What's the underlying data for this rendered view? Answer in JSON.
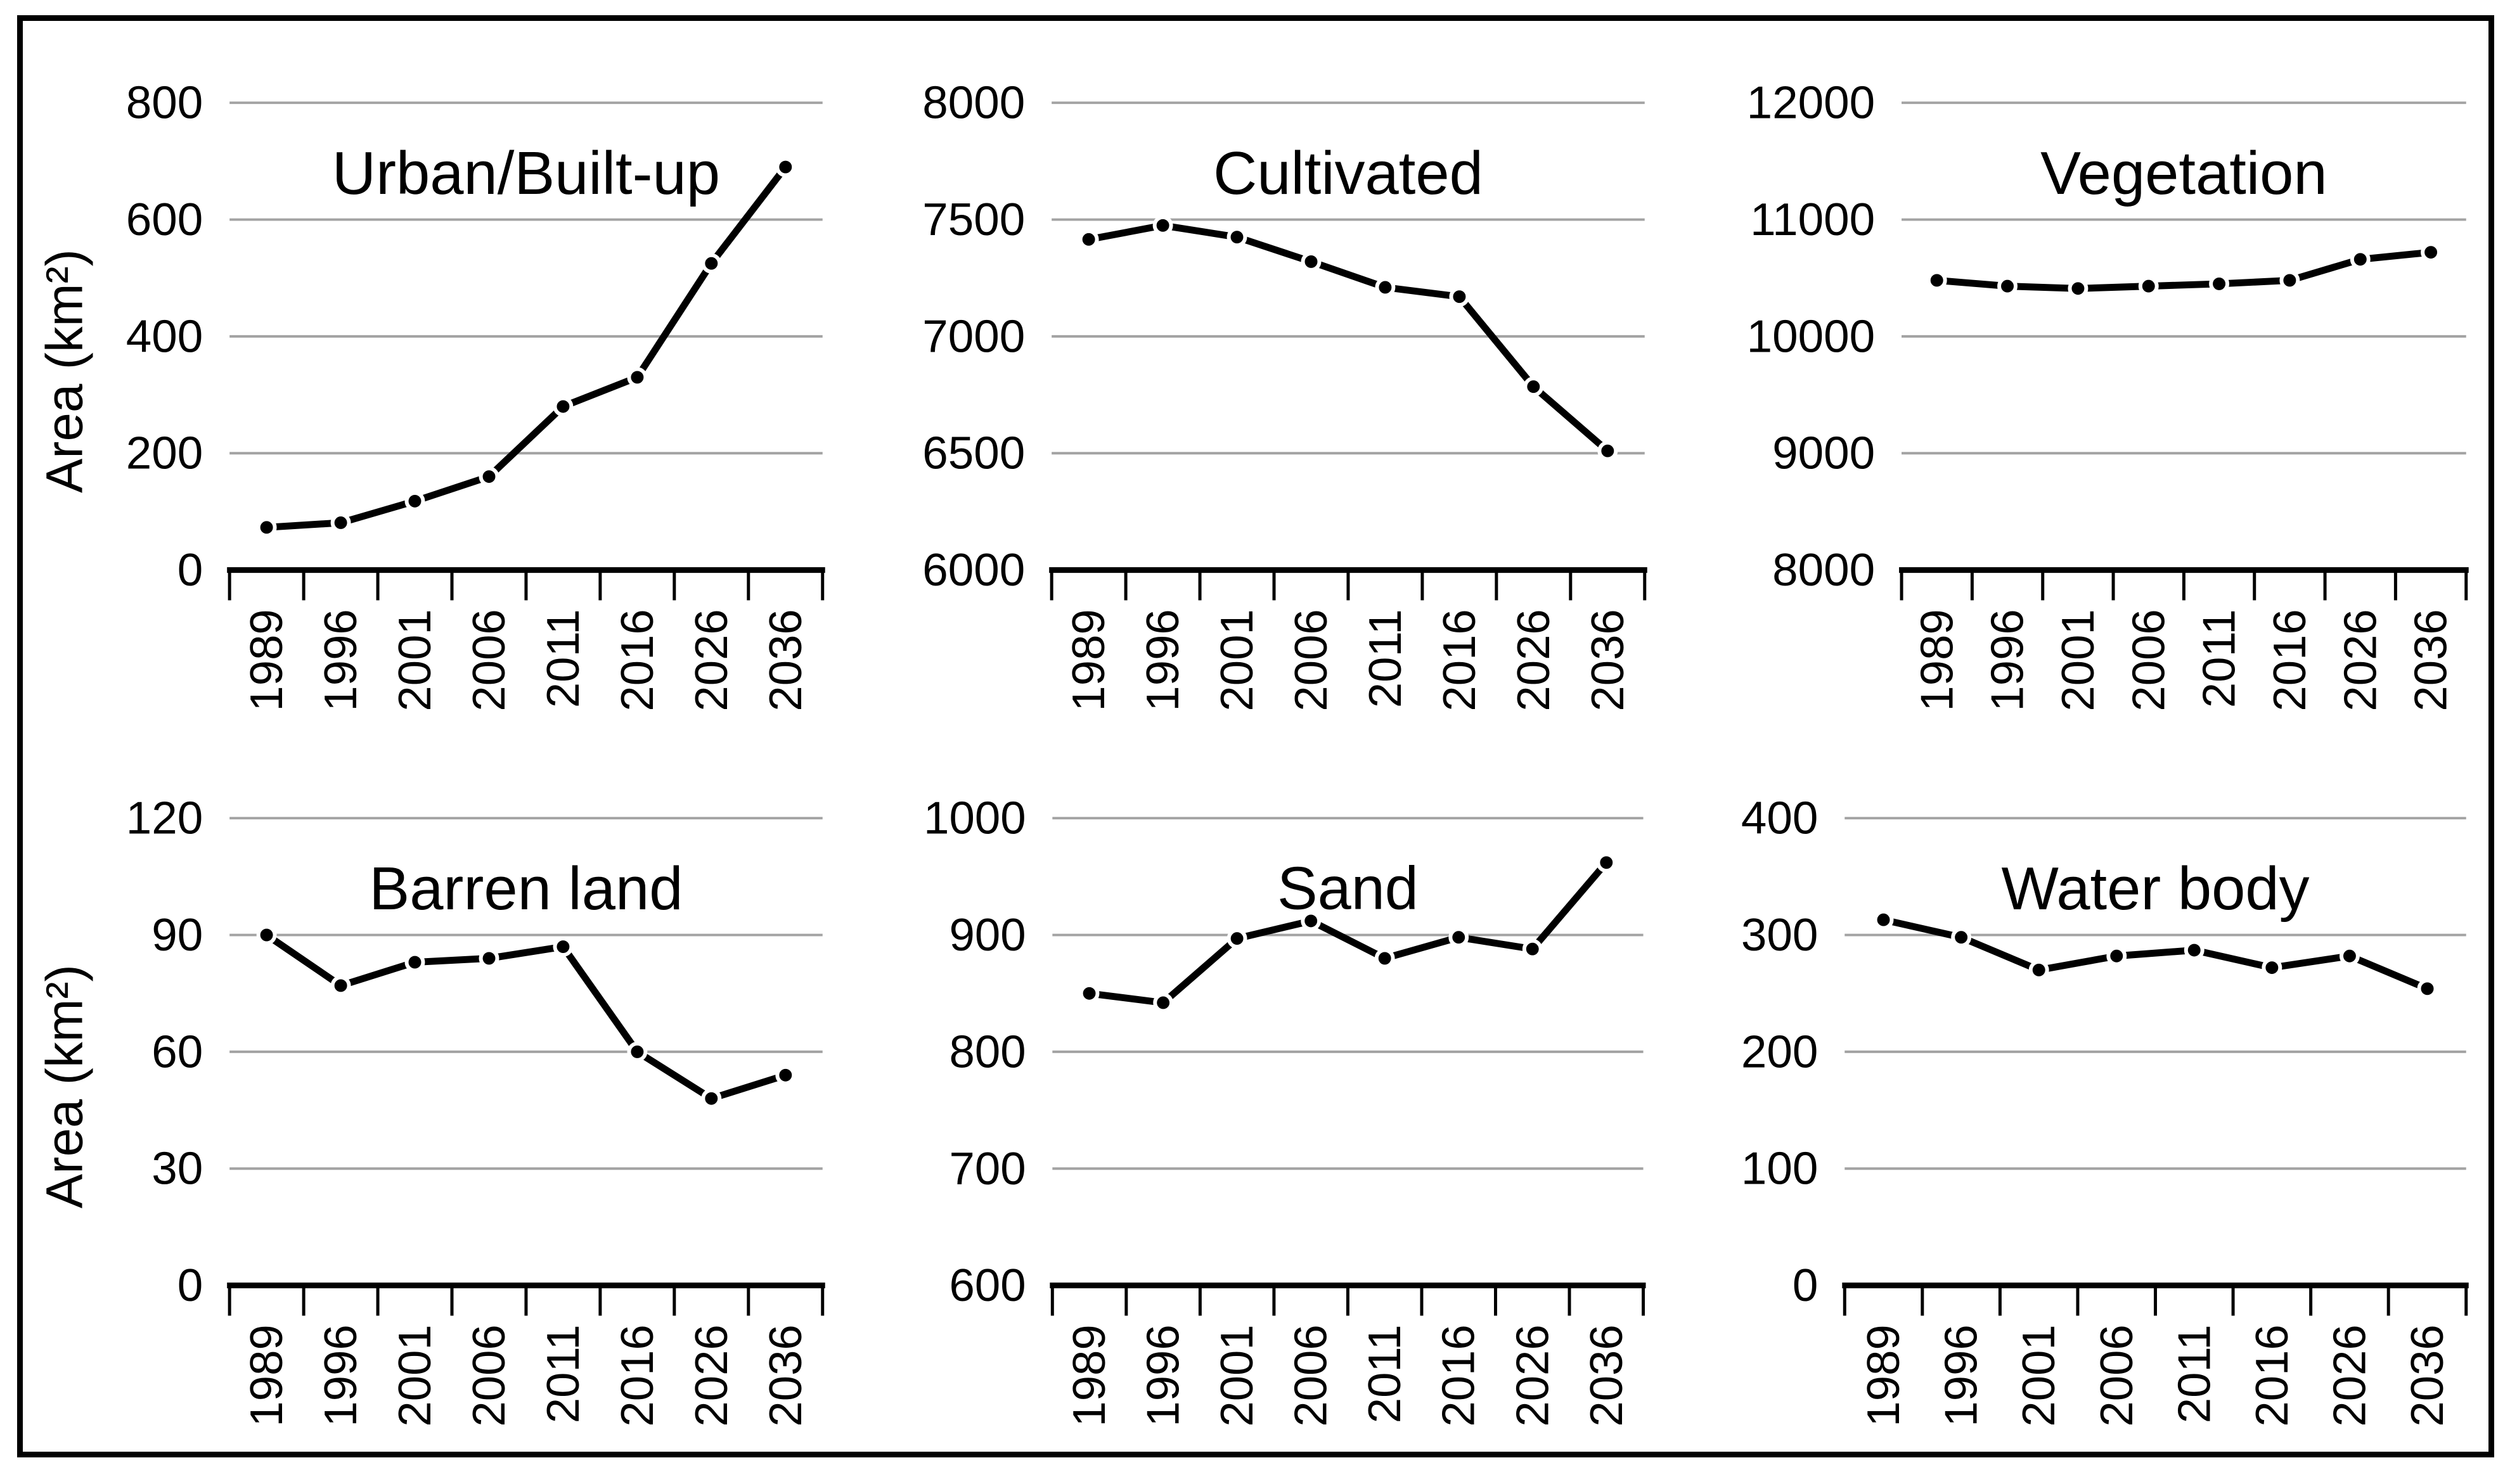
{
  "figure": {
    "background": "#ffffff",
    "border_color": "#000000",
    "grid_color": "#a3a3a3",
    "series_color": "#000000",
    "marker": "circle",
    "legend": "none",
    "y_axis_label": "Area (km²)",
    "x_years": [
      "1989",
      "1996",
      "2001",
      "2006",
      "2011",
      "2016",
      "2026",
      "2036"
    ]
  },
  "chart_data": [
    {
      "type": "line",
      "title": "Urban/Built-up",
      "ylabel": "Area (km²)",
      "categories": [
        "1989",
        "1996",
        "2001",
        "2006",
        "2011",
        "2016",
        "2026",
        "2036"
      ],
      "values": [
        73,
        81,
        118,
        160,
        280,
        330,
        525,
        690
      ],
      "ylim": [
        0,
        800
      ],
      "ytick_step": 200,
      "grid": true,
      "legend_position": "none"
    },
    {
      "type": "line",
      "title": "Cultivated",
      "ylabel": "",
      "categories": [
        "1989",
        "1996",
        "2001",
        "2006",
        "2011",
        "2016",
        "2026",
        "2036"
      ],
      "values": [
        7415,
        7475,
        7425,
        7320,
        7210,
        7170,
        6785,
        6510
      ],
      "ylim": [
        6000,
        8000
      ],
      "ytick_step": 500,
      "grid": true,
      "legend_position": "none"
    },
    {
      "type": "line",
      "title": "Vegetation",
      "ylabel": "",
      "categories": [
        "1989",
        "1996",
        "2001",
        "2006",
        "2011",
        "2016",
        "2026",
        "2036"
      ],
      "values": [
        10480,
        10430,
        10410,
        10430,
        10450,
        10480,
        10660,
        10720
      ],
      "ylim": [
        8000,
        12000
      ],
      "ytick_step": 1000,
      "grid": true,
      "legend_position": "none"
    },
    {
      "type": "line",
      "title": "Barren land",
      "ylabel": "Area (km²)",
      "categories": [
        "1989",
        "1996",
        "2001",
        "2006",
        "2011",
        "2016",
        "2026",
        "2036"
      ],
      "values": [
        90,
        77,
        83,
        84,
        87,
        60,
        48,
        54
      ],
      "ylim": [
        0,
        120
      ],
      "ytick_step": 30,
      "grid": true,
      "legend_position": "none"
    },
    {
      "type": "line",
      "title": "Sand",
      "ylabel": "",
      "categories": [
        "1989",
        "1996",
        "2001",
        "2006",
        "2011",
        "2016",
        "2026",
        "2036"
      ],
      "values": [
        850,
        842,
        897,
        912,
        880,
        898,
        888,
        962
      ],
      "ylim": [
        600,
        1000
      ],
      "ytick_step": 100,
      "grid": true,
      "legend_position": "none"
    },
    {
      "type": "line",
      "title": "Water body",
      "ylabel": "",
      "categories": [
        "1989",
        "1996",
        "2001",
        "2006",
        "2011",
        "2016",
        "2026",
        "2036"
      ],
      "values": [
        313,
        298,
        270,
        282,
        287,
        272,
        282,
        254
      ],
      "ylim": [
        0,
        400
      ],
      "ytick_step": 100,
      "grid": true,
      "legend_position": "none"
    }
  ]
}
